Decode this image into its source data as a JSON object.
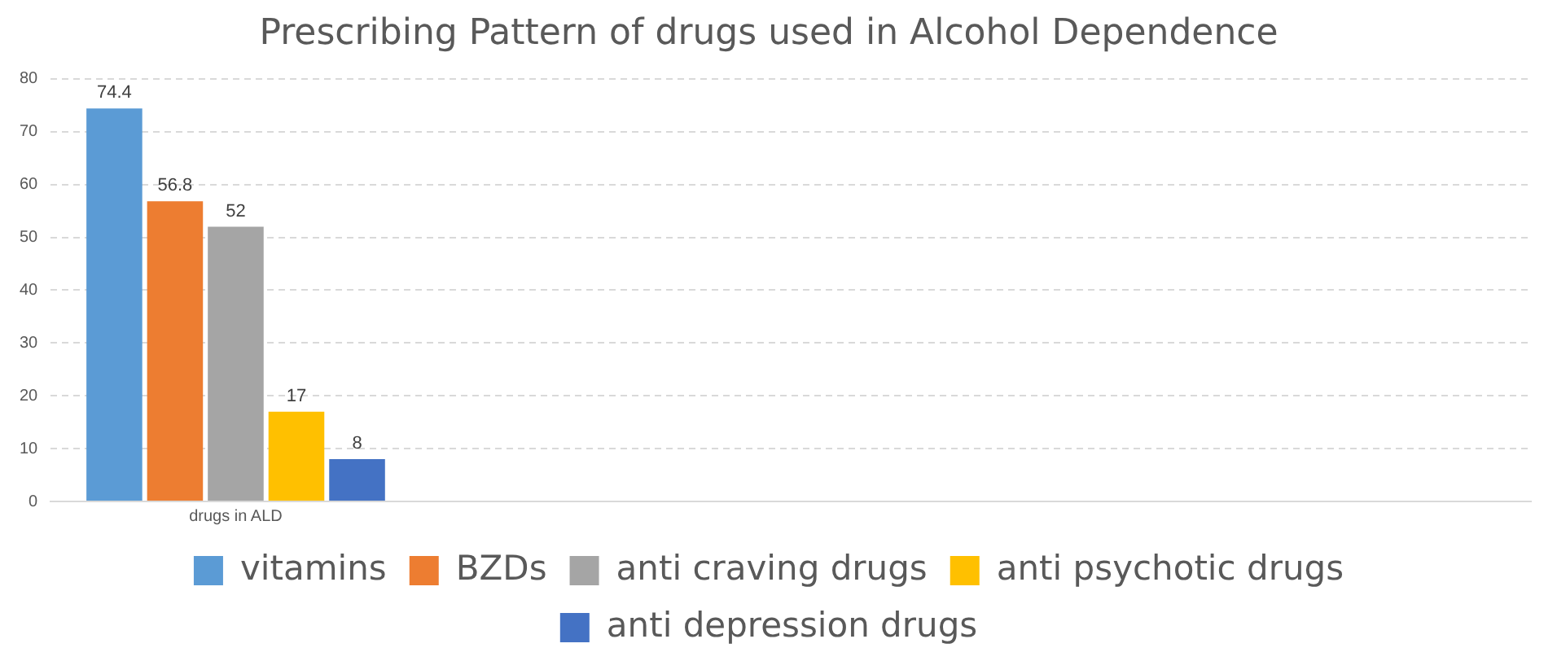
{
  "chart_data": {
    "type": "bar",
    "title": "Prescribing Pattern of drugs used in Alcohol Dependence",
    "categories": [
      "drugs in ALD",
      null,
      null,
      null
    ],
    "series": [
      {
        "name": "vitamins",
        "color": "#5b9bd5",
        "values": [
          74.4,
          null,
          null,
          null
        ]
      },
      {
        "name": "BZDs",
        "color": "#ed7d31",
        "values": [
          56.8,
          null,
          null,
          null
        ]
      },
      {
        "name": "anti craving drugs",
        "color": "#a5a5a5",
        "values": [
          52,
          null,
          null,
          null
        ]
      },
      {
        "name": "anti psychotic drugs",
        "color": "#ffc000",
        "values": [
          17,
          null,
          null,
          null
        ]
      },
      {
        "name": "anti depression drugs",
        "color": "#4472c4",
        "values": [
          8,
          null,
          null,
          null
        ]
      }
    ],
    "ylim": [
      0,
      80
    ],
    "yticks": [
      0,
      10,
      20,
      30,
      40,
      50,
      60,
      70,
      80
    ],
    "grid": "y",
    "legend": "bottom",
    "data_labels": true
  }
}
